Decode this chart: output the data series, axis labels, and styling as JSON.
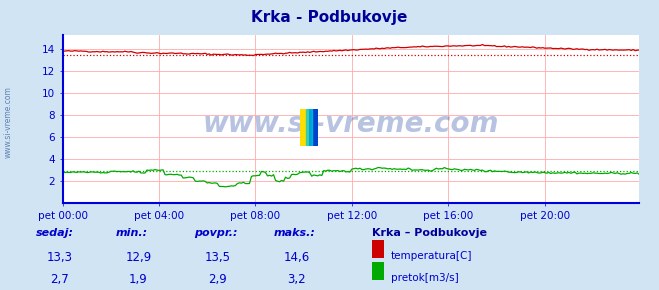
{
  "title": "Krka - Podbukovje",
  "bg_color": "#d0e4f4",
  "plot_bg_color": "#ffffff",
  "grid_color": "#ffaaaa",
  "border_color": "#0000dd",
  "title_color": "#000099",
  "text_color": "#0000cc",
  "temp_color": "#cc0000",
  "flow_color": "#00aa00",
  "avg_temp_color": "#cc0000",
  "avg_flow_color": "#00aa00",
  "xlim": [
    0,
    287
  ],
  "ylim": [
    0,
    15.3
  ],
  "yticks": [
    2,
    4,
    6,
    8,
    10,
    12,
    14
  ],
  "xtick_labels": [
    "pet 00:00",
    "pet 04:00",
    "pet 08:00",
    "pet 12:00",
    "pet 16:00",
    "pet 20:00"
  ],
  "xtick_positions": [
    0,
    48,
    96,
    144,
    192,
    240
  ],
  "avg_temp": 13.5,
  "avg_flow": 2.9,
  "stats": {
    "sedaj_temp": "13,3",
    "min_temp": "12,9",
    "povpr_temp": "13,5",
    "maks_temp": "14,6",
    "sedaj_flow": "2,7",
    "min_flow": "1,9",
    "povpr_flow": "2,9",
    "maks_flow": "3,2"
  },
  "watermark": "www.si-vreme.com",
  "left_label": "www.si-vreme.com"
}
